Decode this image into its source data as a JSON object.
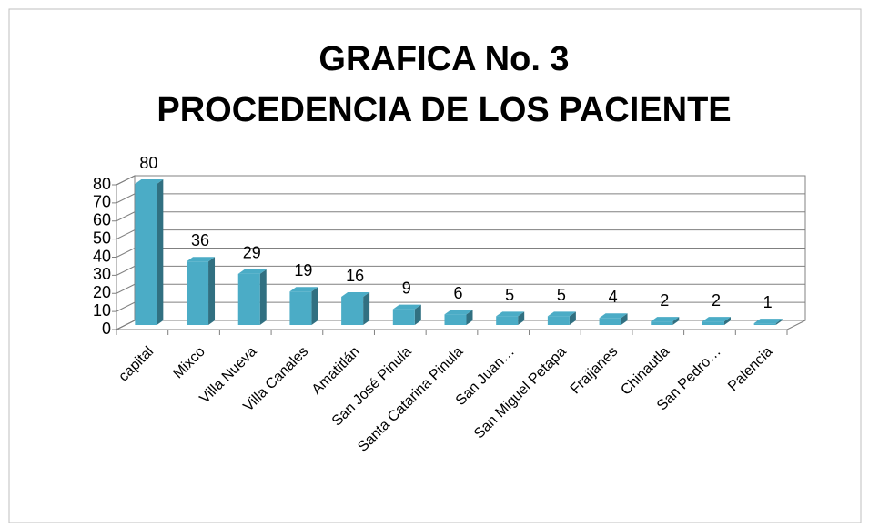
{
  "chart_data": {
    "type": "bar",
    "title": "GRAFICA No. 3",
    "subtitle": "PROCEDENCIA DE LOS PACIENTE",
    "categories": [
      "capital",
      "Mixco",
      "Villa Nueva",
      "Villa Canales",
      "Amatitlán",
      "San José Pinula",
      "Santa Catarina Pinula",
      "San Juan…",
      "San Miguel Petapa",
      "Fraijanes",
      "Chinautla",
      "San Pedro…",
      "Palencia"
    ],
    "values": [
      80,
      36,
      29,
      19,
      16,
      9,
      6,
      5,
      5,
      4,
      2,
      2,
      1
    ],
    "color": "#4bacc6",
    "ylim": [
      0,
      80
    ],
    "yticks": [
      0,
      10,
      20,
      30,
      40,
      50,
      60,
      70,
      80
    ],
    "grid": true
  }
}
